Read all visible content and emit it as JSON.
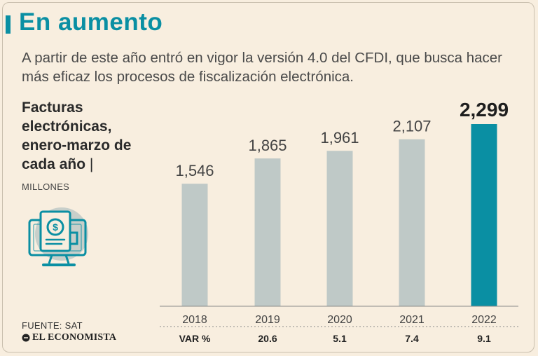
{
  "header": {
    "title": "En aumento",
    "subtitle": "A partir de este año entró en vigor la versión 4.0 del CFDI, que busca hacer más eficaz los procesos de fiscalización electrónica.",
    "chart_label": "Facturas electrónicas, enero-marzo de cada año",
    "separator": "|",
    "unit": "MILLONES"
  },
  "footer": {
    "source": "FUENTE: SAT",
    "brand": "EL ECONOMISTA"
  },
  "colors": {
    "accent": "#0a8fa3",
    "bar": "#bfc9c7",
    "highlight": "#0a8fa3",
    "background": "#f8eedf"
  },
  "chart_data": {
    "type": "bar",
    "title": "Facturas electrónicas, enero-marzo de cada año",
    "ylabel": "MILLONES",
    "xlabel": "",
    "categories": [
      "2018",
      "2019",
      "2020",
      "2021",
      "2022"
    ],
    "values": [
      1546,
      1865,
      1961,
      2107,
      2299
    ],
    "value_labels": [
      "1,546",
      "1,865",
      "1,961",
      "2,107",
      "2,299"
    ],
    "highlight_index": 4,
    "ylim": [
      0,
      2299
    ],
    "variation": {
      "label": "VAR %",
      "values": [
        "",
        "20.6",
        "5.1",
        "7.4",
        "9.1"
      ]
    }
  }
}
